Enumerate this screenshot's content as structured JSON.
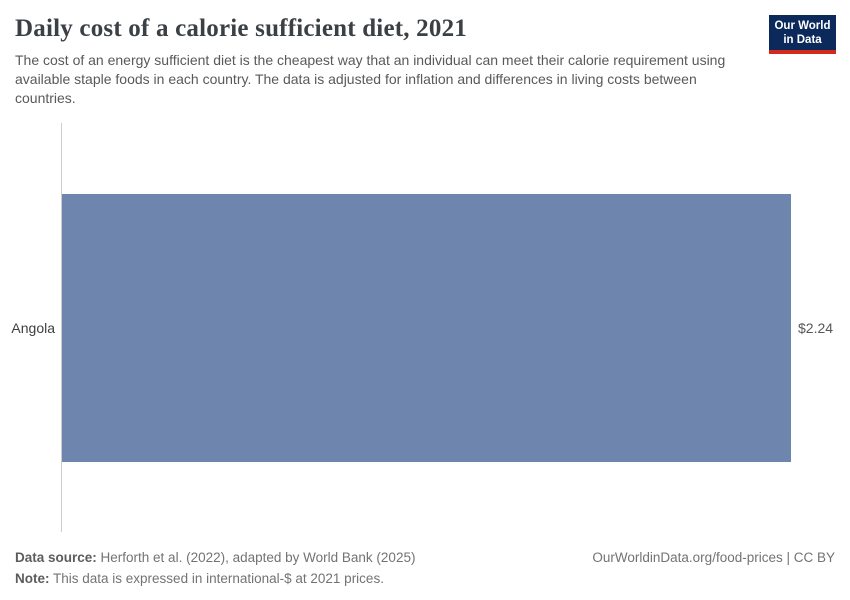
{
  "header": {
    "title": "Daily cost of a calorie sufficient diet, 2021",
    "subtitle": "The cost of an energy sufficient diet is the cheapest way that an individual can meet their calorie requirement using available staple foods in each country. The data is adjusted for inflation and differences in living costs between countries.",
    "logo": {
      "line1": "Our World",
      "line2": "in Data"
    }
  },
  "chart_data": {
    "type": "bar",
    "orientation": "horizontal",
    "title": "Daily cost of a calorie sufficient diet, 2021",
    "categories": [
      "Angola"
    ],
    "values": [
      2.24
    ],
    "value_labels": [
      "$2.24"
    ],
    "xlim": [
      0,
      2.24
    ],
    "xlabel": "",
    "ylabel": "",
    "grid": false,
    "legend": "none",
    "bar_color": "#6e85ad"
  },
  "footer": {
    "source_label": "Data source:",
    "source_text": " Herforth et al. (2022), adapted by World Bank (2025)",
    "note_label": "Note:",
    "note_text": " This data is expressed in international-$ at 2021 prices.",
    "attribution": "OurWorldinData.org/food-prices | CC BY"
  },
  "colors": {
    "bar": "#6e85ad",
    "axis_line": "#cccccc",
    "title_text": "#3b4045",
    "body_text": "#595959",
    "footer_text": "#737373",
    "logo_bg": "#0b2a5b",
    "logo_accent": "#d22b1e"
  }
}
